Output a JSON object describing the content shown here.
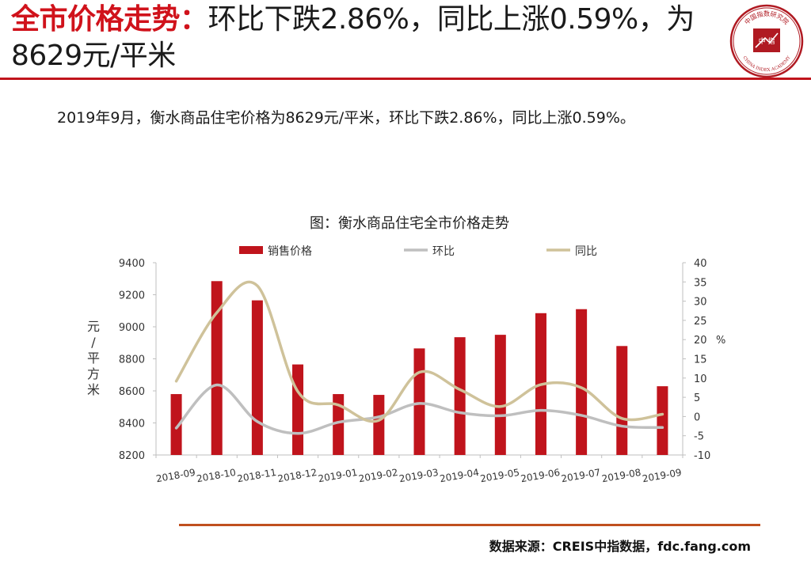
{
  "header": {
    "title_prefix": "全市价格走势：",
    "title_rest": "环比下跌2.86%，同比上涨0.59%，为8629元/平米",
    "logo_text_top": "中国指数研究院",
    "logo_center": "中 指",
    "logo_text_bottom": "CHINA INDEX ACADEMY"
  },
  "summary": "2019年9月，衡水商品住宅价格为8629元/平米，环比下跌2.86%，同比上涨0.59%。",
  "source": "数据来源：CREIS中指数据，fdc.fang.com",
  "colors": {
    "accent": "#c0141c",
    "bar": "#c0141c",
    "mom_line": "#bfbfbf",
    "yoy_line": "#cfc29a",
    "axis": "#bfbfbf",
    "rule": "#c0501e"
  },
  "chart_data": {
    "type": "bar",
    "title": "图：衡水商品住宅全市价格走势",
    "categories": [
      "2018-09",
      "2018-10",
      "2018-11",
      "2018-12",
      "2019-01",
      "2019-02",
      "2019-03",
      "2019-04",
      "2019-05",
      "2019-06",
      "2019-07",
      "2019-08",
      "2019-09"
    ],
    "series": [
      {
        "name": "销售价格",
        "type": "bar",
        "axis": "left",
        "values": [
          8580,
          9285,
          9165,
          8765,
          8580,
          8575,
          8865,
          8935,
          8950,
          9085,
          9110,
          8880,
          8629
        ]
      },
      {
        "name": "环比",
        "type": "line",
        "axis": "right",
        "values": [
          -3.0,
          8.2,
          -1.3,
          -4.4,
          -1.5,
          -0.1,
          3.4,
          1.0,
          0.2,
          1.6,
          0.3,
          -2.5,
          -2.86
        ]
      },
      {
        "name": "同比",
        "type": "line",
        "axis": "right",
        "values": [
          9.2,
          27.0,
          34.0,
          6.5,
          3.0,
          -1.0,
          11.5,
          7.0,
          2.6,
          8.3,
          7.5,
          -0.5,
          0.59
        ]
      }
    ],
    "ylabel": "元/平方米",
    "y2label": "%",
    "ylim": [
      8200,
      9400
    ],
    "y2lim": [
      -10,
      40
    ],
    "yticks": [
      "8200",
      "8400",
      "8600",
      "8800",
      "9000",
      "9200",
      "9400"
    ],
    "y2ticks": [
      "-10",
      "-5",
      "0",
      "5",
      "10",
      "15",
      "20",
      "25",
      "30",
      "35",
      "40"
    ],
    "legend_position": "top"
  }
}
